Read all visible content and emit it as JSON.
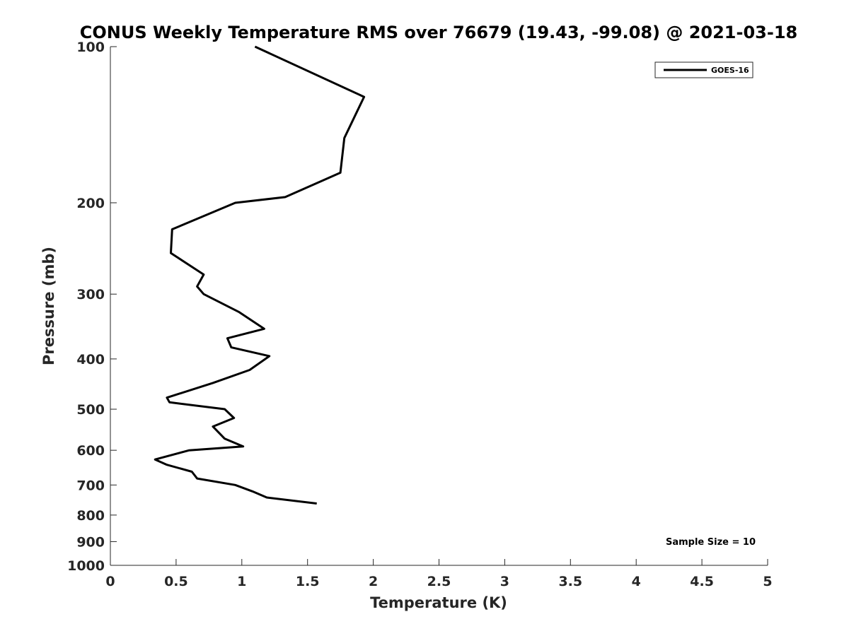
{
  "chart_data": {
    "type": "line",
    "title": "CONUS Weekly Temperature RMS over 76679 (19.43, -99.08) @ 2021-03-18",
    "xlabel": "Temperature (K)",
    "ylabel": "Pressure (mb)",
    "xlim": [
      0,
      5
    ],
    "ylim": [
      100,
      1000
    ],
    "y_scale": "log",
    "y_reversed": true,
    "x_ticks": [
      0,
      0.5,
      1,
      1.5,
      2,
      2.5,
      3,
      3.5,
      4,
      4.5,
      5
    ],
    "x_tick_labels": [
      "0",
      "0.5",
      "1",
      "1.5",
      "2",
      "2.5",
      "3",
      "3.5",
      "4",
      "4.5",
      "5"
    ],
    "y_ticks": [
      100,
      200,
      300,
      400,
      500,
      600,
      700,
      800,
      900,
      1000
    ],
    "y_tick_labels": [
      "100",
      "200",
      "300",
      "400",
      "500",
      "600",
      "700",
      "800",
      "900",
      "1000"
    ],
    "grid": false,
    "legend_position": "top-right",
    "series": [
      {
        "name": "GOES-16",
        "color": "#000000",
        "x": [
          1.1,
          1.93,
          1.78,
          1.75,
          1.33,
          0.95,
          0.47,
          0.46,
          0.71,
          0.66,
          0.71,
          0.98,
          1.17,
          0.89,
          0.92,
          1.21,
          1.06,
          0.78,
          0.43,
          0.45,
          0.87,
          0.94,
          0.78,
          0.87,
          1.01,
          0.6,
          0.34,
          0.43,
          0.62,
          0.66,
          0.95,
          1.08,
          1.19,
          1.57
        ],
        "y": [
          100,
          125,
          150,
          175,
          195,
          200,
          225,
          250,
          275,
          290,
          300,
          325,
          350,
          365,
          380,
          395,
          420,
          445,
          475,
          485,
          500,
          520,
          540,
          570,
          590,
          600,
          625,
          640,
          660,
          680,
          700,
          720,
          740,
          760
        ]
      }
    ],
    "annotations": [
      "Sample Size = 10"
    ]
  }
}
